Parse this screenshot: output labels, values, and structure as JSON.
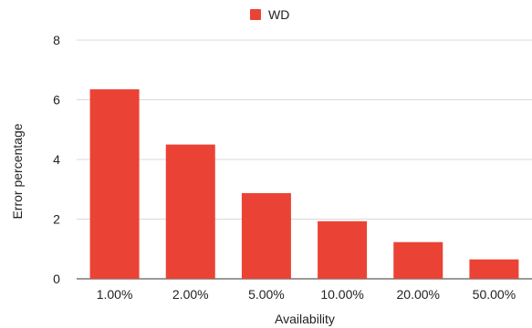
{
  "chart_data": {
    "type": "bar",
    "categories": [
      "1.00%",
      "2.00%",
      "5.00%",
      "10.00%",
      "20.00%",
      "50.00%"
    ],
    "series": [
      {
        "name": "WD",
        "values": [
          6.35,
          4.5,
          2.87,
          1.93,
          1.23,
          0.65
        ],
        "color": "#ea4335"
      }
    ],
    "xlabel": "Availability",
    "ylabel": "Error percentage",
    "ylim": [
      0,
      8
    ],
    "yticks": [
      "0",
      "2",
      "4",
      "6",
      "8"
    ],
    "grid": true,
    "legend_position": "top"
  }
}
